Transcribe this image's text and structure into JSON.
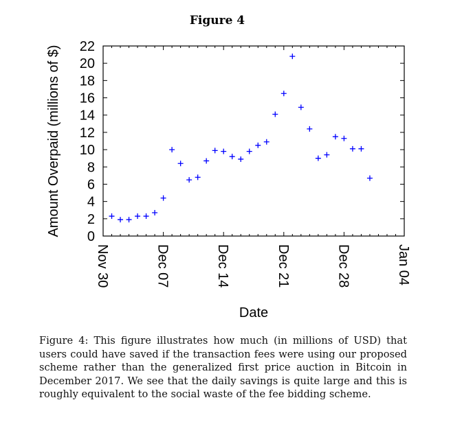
{
  "figure_title": "Figure 4",
  "caption": "Figure 4: This figure illustrates how much (in millions of USD) that users could have saved if the transaction fees were using our proposed scheme rather than the generalized first price auction in Bitcoin in December 2017. We see that the daily savings is quite large and this is roughly equivalent to the social waste of the fee bidding scheme.",
  "chart_data": {
    "type": "scatter",
    "title": "Figure 4",
    "xlabel": "Date",
    "ylabel": "Amount Overpaid (millions of $)",
    "xlim_days_from_nov30": [
      0,
      35
    ],
    "ylim": [
      0,
      22
    ],
    "yticks": [
      0,
      2,
      4,
      6,
      8,
      10,
      12,
      14,
      16,
      18,
      20,
      22
    ],
    "xticks": [
      {
        "day": 0,
        "label": "Nov 30"
      },
      {
        "day": 7,
        "label": "Dec 07"
      },
      {
        "day": 14,
        "label": "Dec 14"
      },
      {
        "day": 21,
        "label": "Dec 21"
      },
      {
        "day": 28,
        "label": "Dec 28"
      },
      {
        "day": 35,
        "label": "Jan 04"
      }
    ],
    "marker": "+",
    "color": "#0000ff",
    "x_days_from_nov30": [
      1,
      2,
      3,
      4,
      5,
      6,
      7,
      8,
      9,
      10,
      11,
      12,
      13,
      14,
      15,
      16,
      17,
      18,
      19,
      20,
      21,
      22,
      23,
      24,
      25,
      26,
      27,
      28,
      29,
      30,
      31
    ],
    "y": [
      2.3,
      1.9,
      1.9,
      2.3,
      2.3,
      2.7,
      4.4,
      10.0,
      8.4,
      6.5,
      6.8,
      8.7,
      9.9,
      9.8,
      9.2,
      8.9,
      9.8,
      10.5,
      10.9,
      14.1,
      16.5,
      20.8,
      14.9,
      12.4,
      9.0,
      9.4,
      11.5,
      11.3,
      10.1,
      10.1,
      6.7
    ]
  }
}
